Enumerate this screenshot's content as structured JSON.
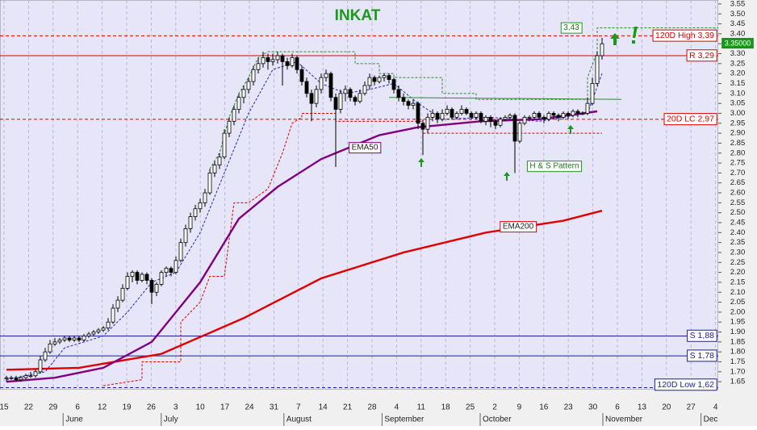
{
  "chart_data": {
    "type": "candlestick",
    "title": "INKAT",
    "ylim": [
      1.61,
      3.57
    ],
    "yticks": [
      3.55,
      {
        "value": 3.5,
        "label": "3.50"
      },
      3.45,
      {
        "value": 3.4,
        "label": "3.40"
      },
      3.35,
      {
        "value": 3.3,
        "label": "3.30"
      },
      3.25,
      {
        "value": 3.2,
        "label": "3.20"
      },
      3.15,
      {
        "value": 3.1,
        "label": "3.10"
      },
      3.05,
      {
        "value": 3,
        "label": "3.00"
      },
      2.95,
      {
        "value": 2.9,
        "label": "2.90"
      },
      2.85,
      {
        "value": 2.8,
        "label": "2.80"
      },
      2.75,
      {
        "value": 2.7,
        "label": "2.70"
      },
      2.65,
      {
        "value": 2.6,
        "label": "2.60"
      },
      2.55,
      {
        "value": 2.5,
        "label": "2.50"
      },
      2.45,
      {
        "value": 2.4,
        "label": "2.40"
      },
      2.35,
      {
        "value": 2.3,
        "label": "2.30"
      },
      2.25,
      {
        "value": 2.2,
        "label": "2.20"
      },
      2.15,
      {
        "value": 2.1,
        "label": "2.10"
      },
      2.05,
      {
        "value": 2,
        "label": "2.00"
      },
      1.95,
      {
        "value": 1.9,
        "label": "1.90"
      },
      1.85,
      {
        "value": 1.8,
        "label": "1.80"
      },
      1.75,
      {
        "value": 1.7,
        "label": "1.70"
      },
      1.65
    ],
    "categories": [
      "15",
      "22",
      "29",
      "6",
      "12",
      "19",
      "26",
      "3",
      "10",
      "17",
      "24",
      "31",
      "7",
      "14",
      "21",
      "28",
      "4",
      "11",
      "18",
      "25",
      "2",
      "9",
      "16",
      "23",
      "30",
      "6",
      "13",
      "20",
      "27",
      "4"
    ],
    "month_labels": [
      null,
      null,
      null,
      "June",
      null,
      null,
      null,
      "July",
      null,
      null,
      null,
      null,
      "August",
      null,
      null,
      null,
      "September",
      null,
      null,
      null,
      "October",
      null,
      null,
      null,
      null,
      "November",
      null,
      null,
      null,
      "Dec"
    ],
    "candles": [
      [
        1.67,
        1.68,
        1.65,
        1.67
      ],
      [
        1.67,
        1.68,
        1.66,
        1.67
      ],
      [
        1.67,
        1.68,
        1.65,
        1.66
      ],
      [
        1.66,
        1.68,
        1.65,
        1.67
      ],
      [
        1.67,
        1.69,
        1.66,
        1.68
      ],
      [
        1.68,
        1.7,
        1.67,
        1.68
      ],
      [
        1.68,
        1.71,
        1.67,
        1.7
      ],
      [
        1.7,
        1.78,
        1.69,
        1.76
      ],
      [
        1.76,
        1.82,
        1.75,
        1.8
      ],
      [
        1.8,
        1.86,
        1.79,
        1.84
      ],
      [
        1.84,
        1.87,
        1.83,
        1.85
      ],
      [
        1.85,
        1.87,
        1.84,
        1.86
      ],
      [
        1.86,
        1.88,
        1.85,
        1.87
      ],
      [
        1.87,
        1.88,
        1.85,
        1.86
      ],
      [
        1.86,
        1.88,
        1.85,
        1.87
      ],
      [
        1.87,
        1.88,
        1.85,
        1.86
      ],
      [
        1.86,
        1.89,
        1.85,
        1.88
      ],
      [
        1.88,
        1.9,
        1.87,
        1.89
      ],
      [
        1.89,
        1.91,
        1.88,
        1.9
      ],
      [
        1.9,
        1.92,
        1.89,
        1.91
      ],
      [
        1.91,
        1.93,
        1.9,
        1.92
      ],
      [
        1.92,
        1.97,
        1.91,
        1.95
      ],
      [
        1.95,
        2.04,
        1.94,
        2.02
      ],
      [
        2.02,
        2.08,
        2,
        2.06
      ],
      [
        2.06,
        2.14,
        2.05,
        2.12
      ],
      [
        2.12,
        2.2,
        2.11,
        2.18
      ],
      [
        2.18,
        2.21,
        2.15,
        2.2
      ],
      [
        2.2,
        2.21,
        2.14,
        2.16
      ],
      [
        2.16,
        2.2,
        2.15,
        2.19
      ],
      [
        2.19,
        2.2,
        2.14,
        2.16
      ],
      [
        2.16,
        2.17,
        2.04,
        2.1
      ],
      [
        2.1,
        2.15,
        2.08,
        2.14
      ],
      [
        2.14,
        2.21,
        2.13,
        2.2
      ],
      [
        2.2,
        2.23,
        2.18,
        2.22
      ],
      [
        2.22,
        2.23,
        2.18,
        2.2
      ],
      [
        2.2,
        2.28,
        2.19,
        2.26
      ],
      [
        2.26,
        2.37,
        2.25,
        2.35
      ],
      [
        2.35,
        2.44,
        2.33,
        2.42
      ],
      [
        2.42,
        2.5,
        2.4,
        2.48
      ],
      [
        2.48,
        2.54,
        2.46,
        2.52
      ],
      [
        2.52,
        2.57,
        2.5,
        2.55
      ],
      [
        2.55,
        2.62,
        2.53,
        2.6
      ],
      [
        2.6,
        2.72,
        2.59,
        2.7
      ],
      [
        2.7,
        2.76,
        2.68,
        2.74
      ],
      [
        2.74,
        2.8,
        2.72,
        2.78
      ],
      [
        2.78,
        2.92,
        2.77,
        2.9
      ],
      [
        2.9,
        2.98,
        2.88,
        2.96
      ],
      [
        2.96,
        3.04,
        2.94,
        3.02
      ],
      [
        3.02,
        3.1,
        3,
        3.08
      ],
      [
        3.08,
        3.14,
        3.05,
        3.12
      ],
      [
        3.12,
        3.18,
        3.1,
        3.16
      ],
      [
        3.16,
        3.24,
        3.14,
        3.22
      ],
      [
        3.22,
        3.28,
        3.2,
        3.25
      ],
      [
        3.25,
        3.31,
        3.23,
        3.28
      ],
      [
        3.28,
        3.3,
        3.22,
        3.26
      ],
      [
        3.26,
        3.3,
        3.24,
        3.27
      ],
      [
        3.27,
        3.31,
        3.25,
        3.29
      ],
      [
        3.29,
        3.3,
        3.14,
        3.26
      ],
      [
        3.26,
        3.28,
        3.22,
        3.24
      ],
      [
        3.24,
        3.3,
        3.23,
        3.28
      ],
      [
        3.28,
        3.29,
        3.2,
        3.22
      ],
      [
        3.22,
        3.24,
        3.14,
        3.16
      ],
      [
        3.16,
        3.18,
        3.08,
        3.1
      ],
      [
        3.1,
        3.12,
        2.96,
        3.05
      ],
      [
        3.05,
        3.14,
        3.03,
        3.12
      ],
      [
        3.12,
        3.2,
        3.1,
        3.18
      ],
      [
        3.18,
        3.22,
        3.16,
        3.2
      ],
      [
        3.2,
        3.21,
        3.06,
        3.08
      ],
      [
        3.08,
        3.1,
        2.73,
        3.02
      ],
      [
        3.02,
        3.12,
        3,
        3.1
      ],
      [
        3.1,
        3.14,
        3.06,
        3.12
      ],
      [
        3.12,
        3.13,
        3.06,
        3.08
      ],
      [
        3.08,
        3.09,
        3.04,
        3.06
      ],
      [
        3.06,
        3.12,
        3.05,
        3.1
      ],
      [
        3.1,
        3.16,
        3.09,
        3.14
      ],
      [
        3.14,
        3.2,
        3.12,
        3.18
      ],
      [
        3.18,
        3.19,
        3.14,
        3.16
      ],
      [
        3.16,
        3.19,
        3.15,
        3.18
      ],
      [
        3.18,
        3.2,
        3.16,
        3.19
      ],
      [
        3.19,
        3.2,
        3.15,
        3.17
      ],
      [
        3.17,
        3.18,
        3.1,
        3.12
      ],
      [
        3.12,
        3.14,
        3.06,
        3.08
      ],
      [
        3.08,
        3.1,
        3.04,
        3.06
      ],
      [
        3.06,
        3.07,
        3.02,
        3.04
      ],
      [
        3.04,
        3.07,
        3.02,
        3.05
      ],
      [
        3.05,
        3.06,
        2.92,
        2.95
      ],
      [
        2.95,
        2.97,
        2.79,
        2.92
      ],
      [
        2.92,
        3,
        2.9,
        2.98
      ],
      [
        2.98,
        3.02,
        2.96,
        3
      ],
      [
        3,
        3.01,
        2.95,
        2.97
      ],
      [
        2.97,
        3.02,
        2.96,
        3
      ],
      [
        3,
        3.04,
        2.99,
        3.02
      ],
      [
        3.02,
        3.03,
        2.97,
        2.98
      ],
      [
        2.98,
        3.01,
        2.97,
        3
      ],
      [
        3,
        3.04,
        2.99,
        3.02
      ],
      [
        3.02,
        3.03,
        2.99,
        3
      ],
      [
        3,
        3.01,
        2.97,
        2.98
      ],
      [
        2.98,
        3.01,
        2.97,
        3
      ],
      [
        3,
        3.01,
        2.95,
        2.96
      ],
      [
        2.96,
        2.99,
        2.94,
        2.98
      ],
      [
        2.98,
        2.99,
        2.93,
        2.96
      ],
      [
        2.96,
        2.97,
        2.92,
        2.94
      ],
      [
        2.94,
        2.98,
        2.93,
        2.97
      ],
      [
        2.97,
        2.99,
        2.96,
        2.98
      ],
      [
        2.98,
        3,
        2.97,
        2.99
      ],
      [
        2.99,
        3,
        2.7,
        2.86
      ],
      [
        2.86,
        2.96,
        2.85,
        2.95
      ],
      [
        2.95,
        2.99,
        2.94,
        2.98
      ],
      [
        2.98,
        2.99,
        2.96,
        2.98
      ],
      [
        2.98,
        3.01,
        2.97,
        3
      ],
      [
        3,
        3.01,
        2.97,
        2.98
      ],
      [
        2.98,
        2.99,
        2.95,
        2.97
      ],
      [
        2.97,
        3.01,
        2.96,
        3
      ],
      [
        3,
        3.01,
        2.97,
        2.99
      ],
      [
        2.99,
        3,
        2.96,
        2.98
      ],
      [
        2.98,
        3.01,
        2.97,
        3
      ],
      [
        3,
        3.01,
        2.97,
        2.99
      ],
      [
        2.99,
        3.02,
        2.98,
        3.01
      ],
      [
        3.01,
        3.02,
        2.98,
        3
      ],
      [
        3,
        3.01,
        2.99,
        3
      ],
      [
        3,
        3.08,
        2.99,
        3.05
      ],
      [
        3.05,
        3.18,
        3.04,
        3.15
      ],
      [
        3.15,
        3.31,
        3.14,
        3.29
      ],
      [
        3.29,
        3.38,
        3.27,
        3.35
      ]
    ],
    "series": [
      {
        "color": "#dd0000",
        "dashed": true,
        "x": [
          20,
          28,
          28,
          36,
          36,
          40,
          42,
          45,
          47,
          50,
          54,
          57,
          59,
          61,
          61,
          68,
          68,
          86,
          86,
          123
        ],
        "values": [
          1.63,
          1.66,
          1.75,
          1.75,
          1.95,
          2.05,
          2.18,
          2.18,
          2.55,
          2.55,
          2.62,
          2.8,
          2.95,
          2.98,
          3,
          3,
          2.96,
          2.96,
          2.9,
          2.9
        ]
      },
      {
        "color": "#2e8b2e",
        "dashed": true,
        "x": [
          42,
          44,
          46,
          48,
          50,
          52,
          54,
          72,
          72,
          77,
          77,
          80,
          80,
          90,
          90,
          97,
          97,
          120,
          120,
          122,
          122,
          147
        ],
        "values": [
          2.72,
          2.8,
          2.98,
          3.1,
          3.18,
          3.28,
          3.31,
          3.31,
          3.25,
          3.25,
          3.2,
          3.2,
          3.18,
          3.18,
          3.1,
          3.1,
          3.07,
          3.07,
          3.18,
          3.31,
          3.43,
          3.43
        ]
      },
      {
        "color": "#2222cc",
        "dashed": true,
        "x": [
          0,
          8,
          12,
          20,
          25,
          30,
          35,
          40,
          45,
          50,
          55,
          60,
          65,
          70,
          75,
          80,
          85,
          90,
          100,
          110,
          120,
          123
        ],
        "values": [
          1.66,
          1.7,
          1.82,
          1.88,
          2,
          2.15,
          2.2,
          2.4,
          2.7,
          3,
          3.22,
          3.26,
          3.15,
          3.1,
          3.12,
          3.15,
          3.05,
          2.97,
          2.98,
          2.96,
          3,
          3.2
        ]
      },
      {
        "color": "#2e8b2e",
        "dashed": false,
        "x": [
          79,
          127
        ],
        "values": [
          3.08,
          3.07
        ]
      },
      {
        "name": "EMA200",
        "color": "#e00000",
        "dashed": false,
        "x": [
          0,
          15,
          32,
          49,
          65,
          82,
          99,
          115,
          123
        ],
        "values": [
          1.71,
          1.72,
          1.79,
          1.97,
          2.17,
          2.3,
          2.4,
          2.46,
          2.51
        ]
      },
      {
        "name": "EMA50",
        "color": "#800080",
        "dashed": false,
        "x": [
          0,
          10,
          20,
          30,
          40,
          48,
          56,
          65,
          77,
          85,
          98,
          110,
          122
        ],
        "values": [
          1.65,
          1.67,
          1.72,
          1.85,
          2.15,
          2.47,
          2.63,
          2.77,
          2.89,
          2.93,
          2.96,
          2.97,
          3.01
        ]
      }
    ],
    "levels": [
      {
        "label": "120D High 3,39",
        "value": 3.39,
        "color": "#dd0000",
        "dashed": true
      },
      {
        "label": "R 3,29",
        "value": 3.29,
        "color": "#dd0000",
        "dashed": false
      },
      {
        "label": "20D LC 2,97",
        "value": 2.97,
        "color": "#dd0000",
        "dashed": true
      },
      {
        "label": "S 1,88",
        "value": 1.88,
        "color": "#1a1aaa",
        "dashed": false
      },
      {
        "label": "S 1,78",
        "value": 1.78,
        "color": "#1a1aaa",
        "dashed": false
      },
      {
        "label": "120D Low 1,62",
        "value": 1.62,
        "color": "#1a1aaa",
        "dashed": true
      }
    ],
    "channel_high_label": {
      "value": 3.43,
      "label": "3,43"
    },
    "last_price": {
      "value": 3.35,
      "label": "3.35000"
    },
    "annotation": "H & S Pattern"
  }
}
